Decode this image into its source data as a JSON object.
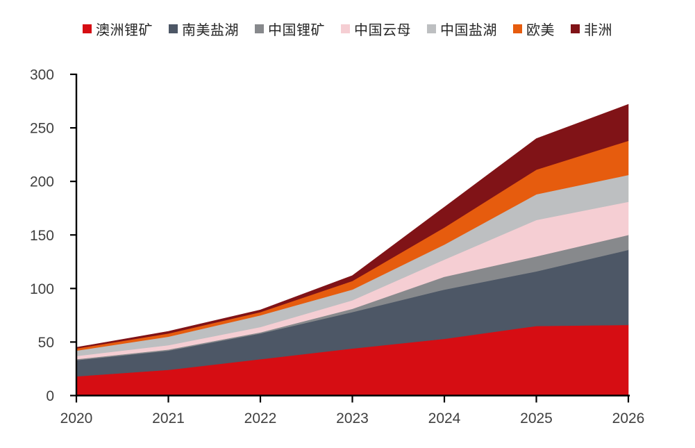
{
  "figure": {
    "background": "#ffffff",
    "axis_color": "#000000",
    "tick_label_color": "#404040"
  },
  "chart_data": {
    "type": "area",
    "stacked": true,
    "title": "",
    "xlabel": "",
    "ylabel": "",
    "grid": false,
    "legend_position": "top",
    "x": [
      2020,
      2021,
      2022,
      2023,
      2024,
      2025,
      2026
    ],
    "xticks": [
      "2020",
      "2021",
      "2022",
      "2023",
      "2024",
      "2025",
      "2026"
    ],
    "ylim": [
      0,
      300
    ],
    "ytick_step": 50,
    "yticks": [
      "0",
      "50",
      "100",
      "150",
      "200",
      "250",
      "300"
    ],
    "series": [
      {
        "name": "澳洲锂矿",
        "color": "#D60D13",
        "values": [
          18,
          24,
          34,
          44,
          53,
          65,
          66
        ]
      },
      {
        "name": "南美盐湖",
        "color": "#4D5766",
        "values": [
          15,
          18,
          24,
          34,
          46,
          51,
          70
        ]
      },
      {
        "name": "中国锂矿",
        "color": "#87898C",
        "values": [
          1,
          1,
          1,
          3,
          12,
          14,
          14
        ]
      },
      {
        "name": "中国云母",
        "color": "#F5CED3",
        "values": [
          3,
          4,
          5,
          8,
          16,
          34,
          31
        ]
      },
      {
        "name": "中国盐湖",
        "color": "#BDBFC1",
        "values": [
          5,
          8,
          11,
          10,
          14,
          24,
          25
        ]
      },
      {
        "name": "欧美",
        "color": "#E65C0E",
        "values": [
          2,
          3,
          3,
          8,
          16,
          23,
          32
        ]
      },
      {
        "name": "非洲",
        "color": "#801317",
        "values": [
          1,
          2,
          2,
          5,
          19,
          29,
          34
        ]
      }
    ],
    "totals": [
      45,
      60,
      80,
      112,
      176,
      240,
      272
    ]
  }
}
